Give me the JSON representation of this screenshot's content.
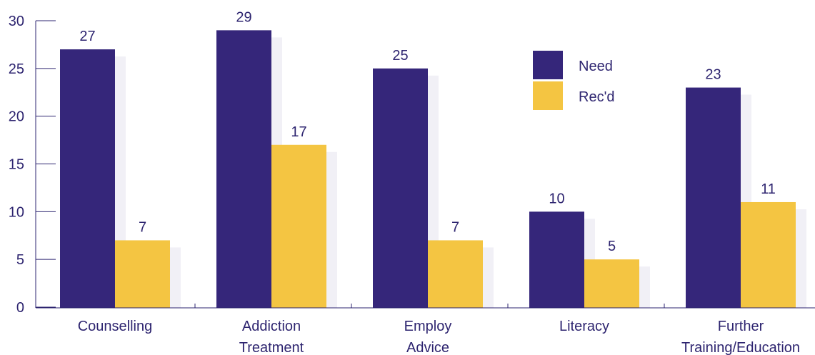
{
  "chart_data": {
    "type": "bar",
    "categories": [
      [
        "Counselling"
      ],
      [
        "Addiction",
        "Treatment"
      ],
      [
        "Employ",
        "Advice"
      ],
      [
        "Literacy"
      ],
      [
        "Further",
        "Training/Education"
      ]
    ],
    "series": [
      {
        "name": "Need",
        "values": [
          27,
          29,
          25,
          10,
          23
        ],
        "color": "#35267a"
      },
      {
        "name": "Rec'd",
        "values": [
          7,
          17,
          7,
          5,
          11
        ],
        "color": "#f4c542"
      }
    ],
    "y_ticks": [
      "0",
      "5",
      "10",
      "15",
      "20",
      "25",
      "30"
    ],
    "ylim": [
      0,
      30
    ],
    "shadow_color": "#f1f0f6",
    "axis_color": "#2e2570",
    "legend_position": "top-right",
    "grid": false
  }
}
